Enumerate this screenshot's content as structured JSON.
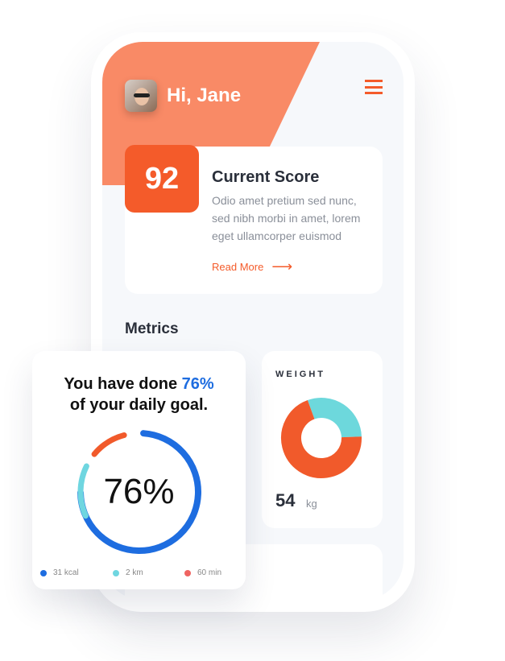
{
  "header": {
    "greeting": "Hi, Jane"
  },
  "score": {
    "value": "92",
    "title": "Current Score",
    "text": "Odio amet pretium sed nunc, sed nibh morbi in amet, lorem eget ullamcorper euismod",
    "link": "Read More",
    "arrow": "⟶"
  },
  "metrics": {
    "title": "Metrics"
  },
  "goal": {
    "title_pre": "You have done ",
    "title_pct": "76%",
    "title_post": "of your daily goal.",
    "value": "76%",
    "progress": 76,
    "legend": [
      {
        "label": "31 kcal",
        "color": "#1e6de0"
      },
      {
        "label": "2 km",
        "color": "#6fd6e0"
      },
      {
        "label": "60 min",
        "color": "#ef6461"
      }
    ]
  },
  "weight": {
    "label": "WEIGHT",
    "value": "54",
    "unit": "kg",
    "segments": [
      {
        "share": 30,
        "color": "#6dd8dc"
      },
      {
        "share": 70,
        "color": "#f15a2b"
      }
    ]
  },
  "colors": {
    "accent": "#f45b2a",
    "header": "#f98a66",
    "blue": "#1e6de0",
    "cyan": "#6fd6e0"
  }
}
